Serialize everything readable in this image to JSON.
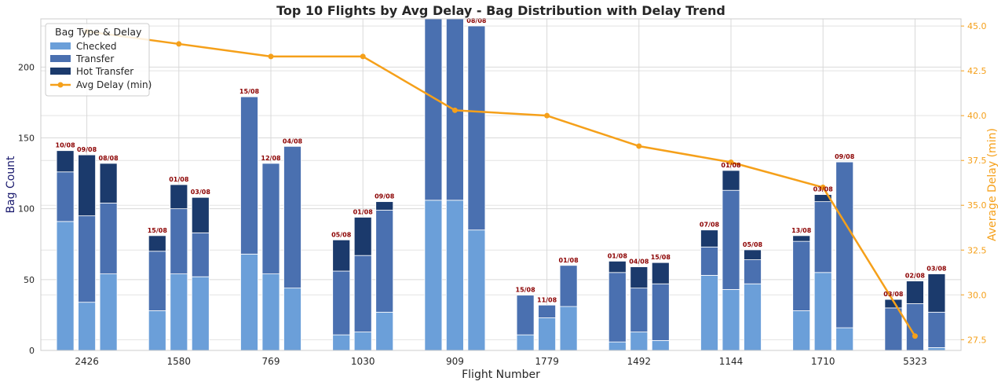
{
  "chart_data": {
    "type": "bar",
    "title": "Top 10 Flights by Avg Delay - Bag Distribution with Delay Trend",
    "xlabel": "Flight Number",
    "ylabel": "Bag Count",
    "y2label": "Average Delay (min)",
    "ylim": [
      0,
      234
    ],
    "y2lim": [
      26.9,
      45.4
    ],
    "yticks": [
      0,
      50,
      100,
      150,
      200
    ],
    "y2ticks": [
      27.5,
      30.0,
      32.5,
      35.0,
      37.5,
      40.0,
      42.5,
      45.0
    ],
    "grid": true,
    "legend": {
      "title": "Bag Type & Delay",
      "placement": "top-left",
      "entries": [
        "Checked",
        "Transfer",
        "Hot Transfer",
        "Avg Delay (min)"
      ]
    },
    "colors": {
      "checked": "#6b9fd9",
      "transfer": "#4a70b0",
      "hot_transfer": "#1b3a6c",
      "delay_line": "#f5a01a",
      "date_label": "#8b0000",
      "right_axis": "#f5a01a",
      "left_axis_title": "#1a1a6e"
    },
    "categories": [
      "2426",
      "1580",
      "769",
      "1030",
      "909",
      "1779",
      "1492",
      "1144",
      "1710",
      "5323"
    ],
    "flights": [
      {
        "flight": "2426",
        "bars": [
          {
            "date": "10/08",
            "checked": 91,
            "transfer": 35,
            "hot_transfer": 15
          },
          {
            "date": "09/08",
            "checked": 34,
            "transfer": 61,
            "hot_transfer": 43
          },
          {
            "date": "08/08",
            "checked": 54,
            "transfer": 50,
            "hot_transfer": 28
          }
        ]
      },
      {
        "flight": "1580",
        "bars": [
          {
            "date": "15/08",
            "checked": 28,
            "transfer": 42,
            "hot_transfer": 11
          },
          {
            "date": "01/08",
            "checked": 54,
            "transfer": 46,
            "hot_transfer": 17
          },
          {
            "date": "03/08",
            "checked": 52,
            "transfer": 31,
            "hot_transfer": 25
          }
        ]
      },
      {
        "flight": "769",
        "bars": [
          {
            "date": "15/08",
            "checked": 68,
            "transfer": 111,
            "hot_transfer": 0
          },
          {
            "date": "12/08",
            "checked": 54,
            "transfer": 78,
            "hot_transfer": 0
          },
          {
            "date": "04/08",
            "checked": 44,
            "transfer": 100,
            "hot_transfer": 0
          }
        ]
      },
      {
        "flight": "1030",
        "bars": [
          {
            "date": "05/08",
            "checked": 11,
            "transfer": 45,
            "hot_transfer": 22
          },
          {
            "date": "01/08",
            "checked": 13,
            "transfer": 54,
            "hot_transfer": 27
          },
          {
            "date": "09/08",
            "checked": 27,
            "transfer": 72,
            "hot_transfer": 6
          }
        ]
      },
      {
        "flight": "909",
        "bars": [
          {
            "date": "",
            "checked": 106,
            "transfer": 128,
            "hot_transfer": 0
          },
          {
            "date": "",
            "checked": 106,
            "transfer": 128,
            "hot_transfer": 0
          },
          {
            "date": "08/08",
            "checked": 85,
            "transfer": 144,
            "hot_transfer": 0
          }
        ]
      },
      {
        "flight": "1779",
        "bars": [
          {
            "date": "15/08",
            "checked": 11,
            "transfer": 28,
            "hot_transfer": 0
          },
          {
            "date": "11/08",
            "checked": 23,
            "transfer": 9,
            "hot_transfer": 0
          },
          {
            "date": "01/08",
            "checked": 31,
            "transfer": 29,
            "hot_transfer": 0
          }
        ]
      },
      {
        "flight": "1492",
        "bars": [
          {
            "date": "01/08",
            "checked": 6,
            "transfer": 49,
            "hot_transfer": 8
          },
          {
            "date": "04/08",
            "checked": 13,
            "transfer": 31,
            "hot_transfer": 15
          },
          {
            "date": "15/08",
            "checked": 7,
            "transfer": 40,
            "hot_transfer": 15
          }
        ]
      },
      {
        "flight": "1144",
        "bars": [
          {
            "date": "07/08",
            "checked": 53,
            "transfer": 20,
            "hot_transfer": 12
          },
          {
            "date": "01/08",
            "checked": 43,
            "transfer": 70,
            "hot_transfer": 14
          },
          {
            "date": "05/08",
            "checked": 47,
            "transfer": 17,
            "hot_transfer": 7
          }
        ]
      },
      {
        "flight": "1710",
        "bars": [
          {
            "date": "13/08",
            "checked": 28,
            "transfer": 49,
            "hot_transfer": 4
          },
          {
            "date": "03/08",
            "checked": 55,
            "transfer": 50,
            "hot_transfer": 5
          },
          {
            "date": "09/08",
            "checked": 16,
            "transfer": 117,
            "hot_transfer": 0
          }
        ]
      },
      {
        "flight": "5323",
        "bars": [
          {
            "date": "03/08",
            "checked": 0,
            "transfer": 30,
            "hot_transfer": 6
          },
          {
            "date": "02/08",
            "checked": 0,
            "transfer": 33,
            "hot_transfer": 16
          },
          {
            "date": "03/08",
            "checked": 2,
            "transfer": 25,
            "hot_transfer": 27
          }
        ]
      }
    ],
    "avg_delay": [
      44.7,
      44.0,
      43.3,
      43.3,
      40.3,
      40.0,
      38.3,
      37.4,
      36.0,
      27.7
    ]
  }
}
